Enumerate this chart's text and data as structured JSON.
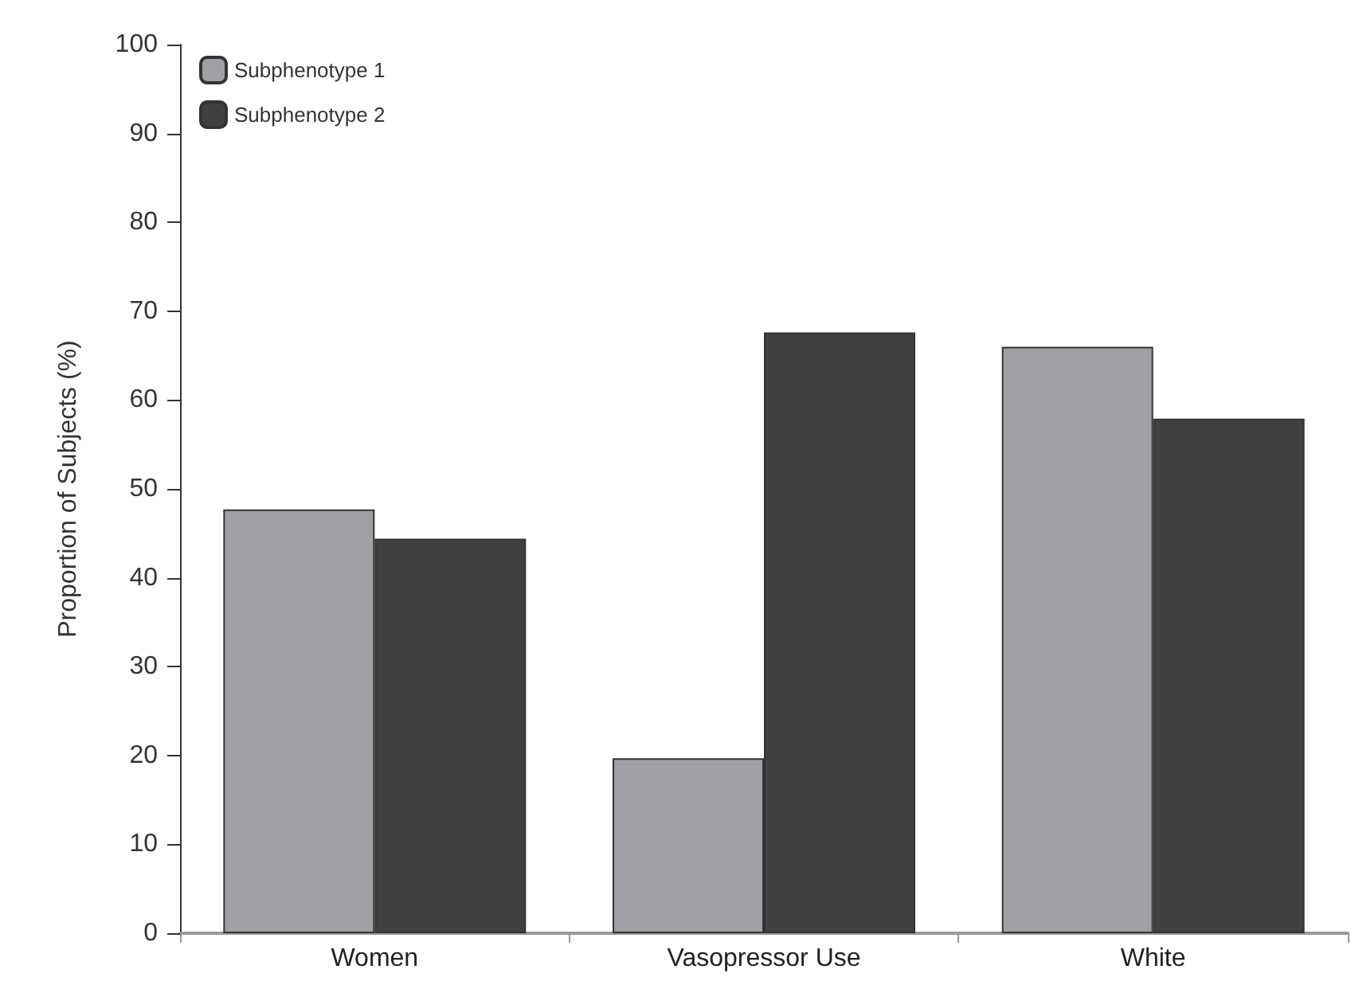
{
  "chart_data": {
    "type": "bar",
    "ylabel": "Proportion of Subjects (%)",
    "categories": [
      "Women",
      "Vasopressor Use",
      "White"
    ],
    "series": [
      {
        "name": "Subphenotype 1",
        "color": "#a0a0a4",
        "values": [
          47.7,
          19.7,
          66
        ]
      },
      {
        "name": "Subphenotype 2",
        "color": "#404040",
        "values": [
          44.4,
          67.6,
          57.9
        ]
      }
    ],
    "ylim": [
      0,
      100
    ],
    "yticks": [
      0,
      10,
      20,
      30,
      40,
      50,
      60,
      70,
      80,
      90,
      100
    ],
    "grid": false,
    "legend": "top left"
  }
}
